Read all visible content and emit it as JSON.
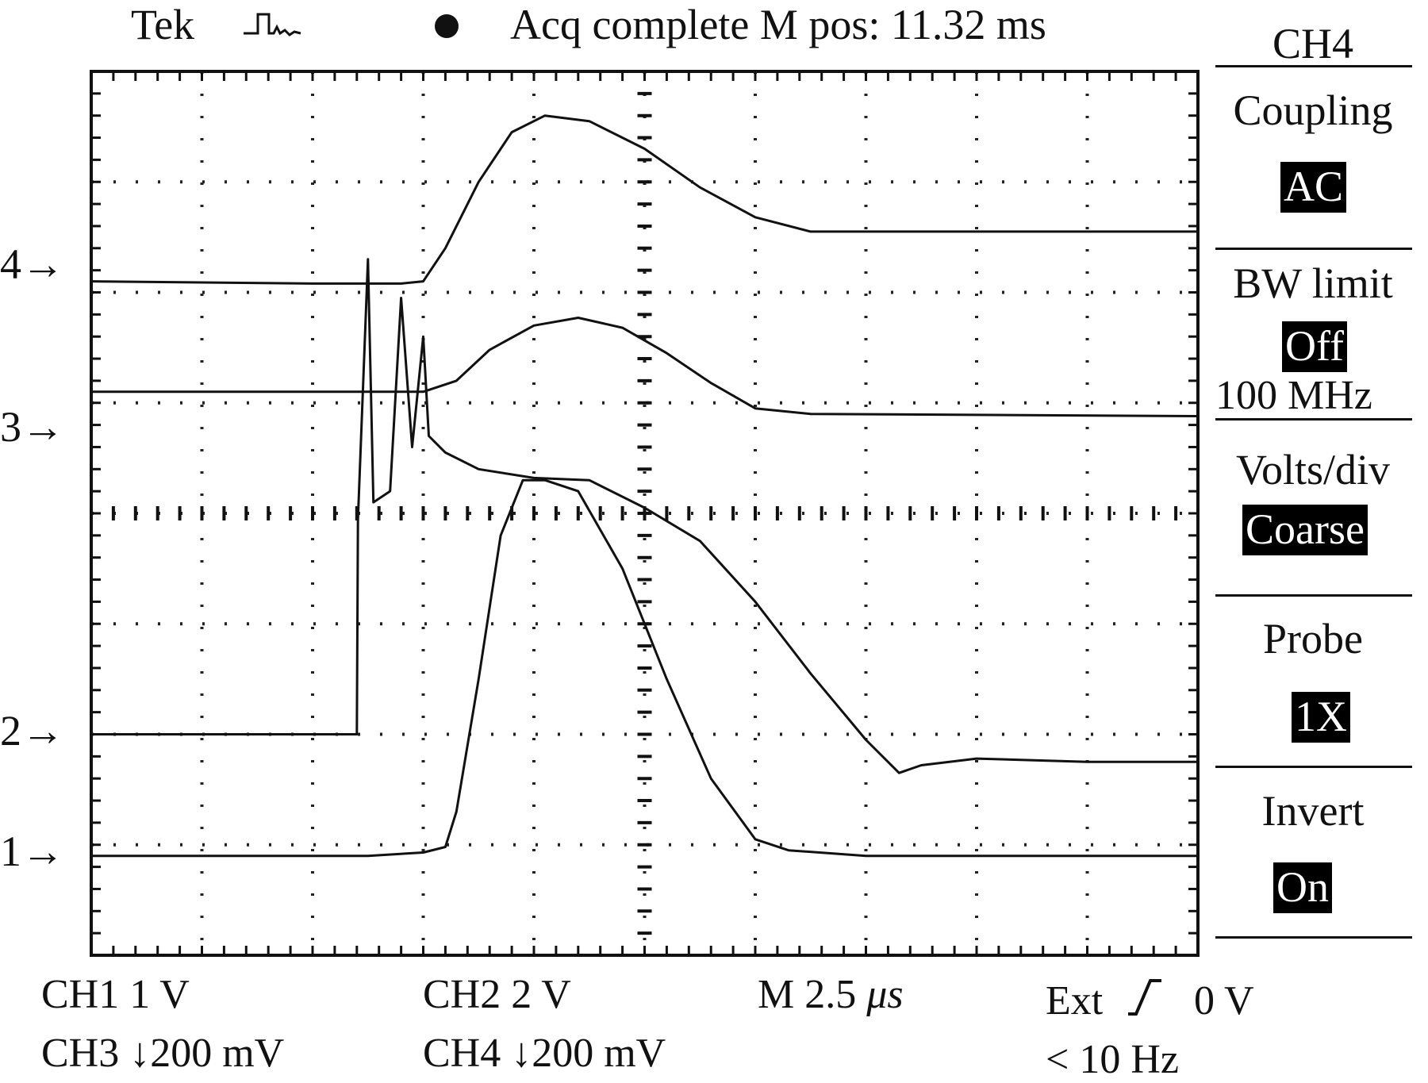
{
  "header": {
    "brand": "Tek",
    "trigger_icon": "pulse-trigger-icon",
    "state_dot_icon": "acquisition-dot-icon",
    "status": "Acq complete M pos: 11.32 ms"
  },
  "side_menu": {
    "channel": "CH4",
    "items": [
      {
        "label": "Coupling",
        "value": "AC"
      },
      {
        "label": "BW limit",
        "value": "Off",
        "extra": "100 MHz"
      },
      {
        "label": "Volts/div",
        "value": "Coarse"
      },
      {
        "label": "Probe",
        "value": "1X"
      },
      {
        "label": "Invert",
        "value": "On"
      }
    ]
  },
  "channel_markers": [
    {
      "label": "4→",
      "channel": 4
    },
    {
      "label": "3→",
      "channel": 3
    },
    {
      "label": "2→",
      "channel": 2
    },
    {
      "label": "1→",
      "channel": 1
    }
  ],
  "footer": {
    "ch1": "CH1 1 V",
    "ch2": "CH2 2 V",
    "timebase_prefix": "M 2.5 ",
    "timebase_unit": "μs",
    "trigger_source": "Ext",
    "trigger_level": "0 V",
    "ch3": "CH3 ↓200 mV",
    "ch4": "CH4 ↓200 mV",
    "trigger_freq": "< 10 Hz"
  },
  "chart_data": {
    "type": "line",
    "grid": true,
    "x_divisions": 10,
    "y_divisions": 8,
    "x_range_div": [
      0,
      10
    ],
    "y_range_div": [
      0,
      8
    ],
    "series": [
      {
        "channel": 4,
        "points": [
          [
            0,
            6.1
          ],
          [
            2.0,
            6.08
          ],
          [
            2.8,
            6.08
          ],
          [
            3.0,
            6.1
          ],
          [
            3.2,
            6.4
          ],
          [
            3.5,
            7.0
          ],
          [
            3.8,
            7.45
          ],
          [
            4.1,
            7.6
          ],
          [
            4.5,
            7.55
          ],
          [
            5.0,
            7.3
          ],
          [
            5.5,
            6.95
          ],
          [
            6.0,
            6.68
          ],
          [
            6.5,
            6.55
          ],
          [
            7.0,
            6.55
          ],
          [
            10,
            6.55
          ]
        ]
      },
      {
        "channel": 3,
        "points": [
          [
            0,
            5.1
          ],
          [
            2.5,
            5.1
          ],
          [
            3.0,
            5.1
          ],
          [
            3.3,
            5.2
          ],
          [
            3.6,
            5.48
          ],
          [
            4.0,
            5.7
          ],
          [
            4.4,
            5.77
          ],
          [
            4.8,
            5.68
          ],
          [
            5.2,
            5.45
          ],
          [
            5.6,
            5.18
          ],
          [
            6.0,
            4.95
          ],
          [
            6.5,
            4.9
          ],
          [
            10,
            4.88
          ]
        ]
      },
      {
        "channel": 2,
        "points": [
          [
            0,
            2.0
          ],
          [
            2.3,
            2.0
          ],
          [
            2.4,
            2.0
          ],
          [
            2.41,
            3.95
          ],
          [
            2.5,
            6.3
          ],
          [
            2.55,
            4.1
          ],
          [
            2.7,
            4.2
          ],
          [
            2.8,
            5.95
          ],
          [
            2.9,
            4.6
          ],
          [
            3.0,
            5.6
          ],
          [
            3.05,
            4.7
          ],
          [
            3.2,
            4.55
          ],
          [
            3.5,
            4.4
          ],
          [
            4.0,
            4.32
          ],
          [
            4.5,
            4.3
          ],
          [
            5.0,
            4.05
          ],
          [
            5.5,
            3.75
          ],
          [
            6.0,
            3.2
          ],
          [
            6.5,
            2.55
          ],
          [
            7.0,
            1.95
          ],
          [
            7.3,
            1.65
          ],
          [
            7.5,
            1.72
          ],
          [
            8.0,
            1.78
          ],
          [
            9.0,
            1.75
          ],
          [
            10,
            1.75
          ]
        ]
      },
      {
        "channel": 1,
        "points": [
          [
            0,
            0.9
          ],
          [
            2.5,
            0.9
          ],
          [
            3.0,
            0.93
          ],
          [
            3.2,
            0.98
          ],
          [
            3.3,
            1.3
          ],
          [
            3.5,
            2.5
          ],
          [
            3.7,
            3.8
          ],
          [
            3.9,
            4.3
          ],
          [
            4.1,
            4.3
          ],
          [
            4.4,
            4.2
          ],
          [
            4.8,
            3.5
          ],
          [
            5.2,
            2.5
          ],
          [
            5.6,
            1.6
          ],
          [
            6.0,
            1.05
          ],
          [
            6.3,
            0.95
          ],
          [
            7.0,
            0.9
          ],
          [
            8.0,
            0.9
          ],
          [
            10,
            0.9
          ]
        ]
      }
    ]
  }
}
